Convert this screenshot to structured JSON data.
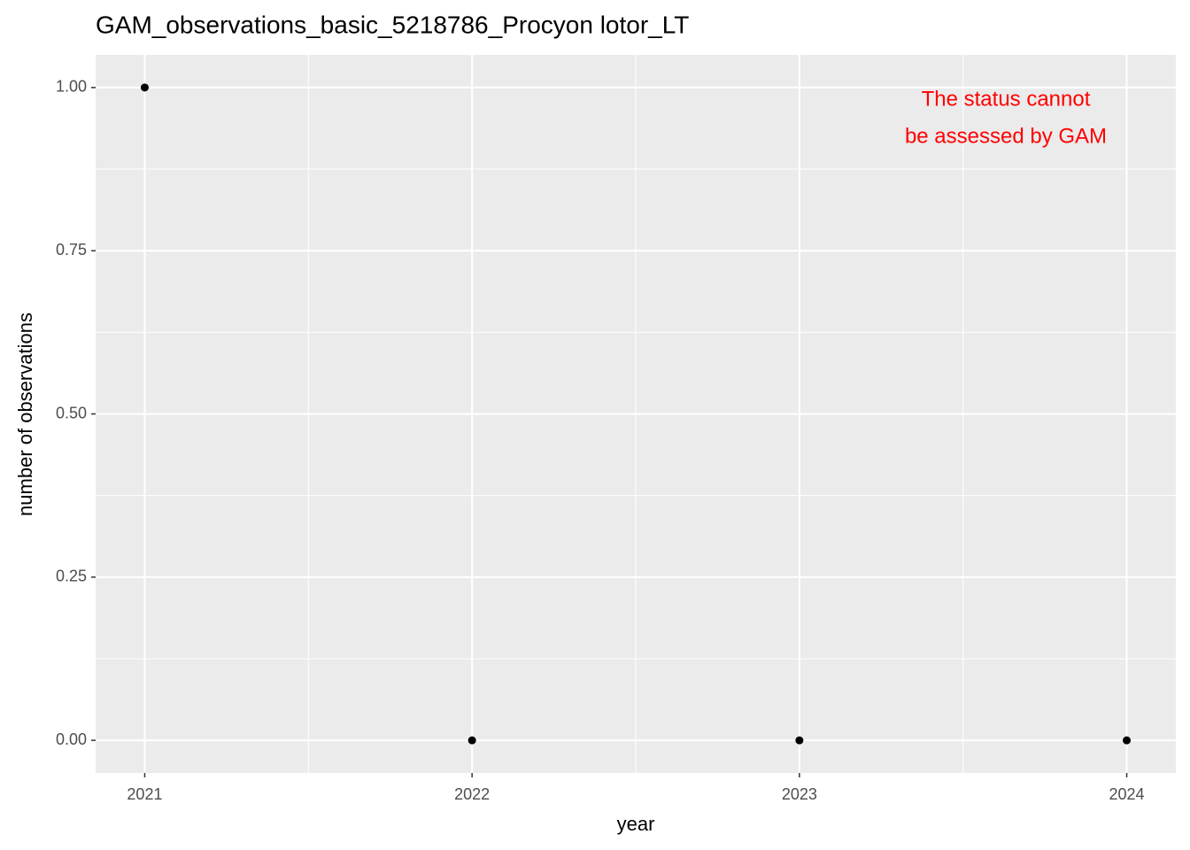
{
  "chart_data": {
    "type": "scatter",
    "title": "GAM_observations_basic_5218786_Procyon lotor_LT",
    "x_label": "year",
    "y_label": "number of observations",
    "annotation": [
      "The status cannot",
      "be assessed by GAM"
    ],
    "annotation_color": "#ff0000",
    "x": [
      2021,
      2022,
      2023,
      2024
    ],
    "series": [
      {
        "color": "#000000",
        "values": [
          1,
          0,
          0,
          0
        ]
      }
    ],
    "xlim": [
      2020.85,
      2024.15
    ],
    "ylim": [
      -0.05,
      1.05
    ],
    "xticks": [
      2021,
      2022,
      2023,
      2024
    ],
    "yticks": [
      {
        "value": 0,
        "label": "0.00"
      },
      {
        "value": 0.25,
        "label": "0.25"
      },
      {
        "value": 0.5,
        "label": "0.50"
      },
      {
        "value": 0.75,
        "label": "0.75"
      },
      {
        "value": 1,
        "label": "1.00"
      }
    ],
    "grid": true
  }
}
